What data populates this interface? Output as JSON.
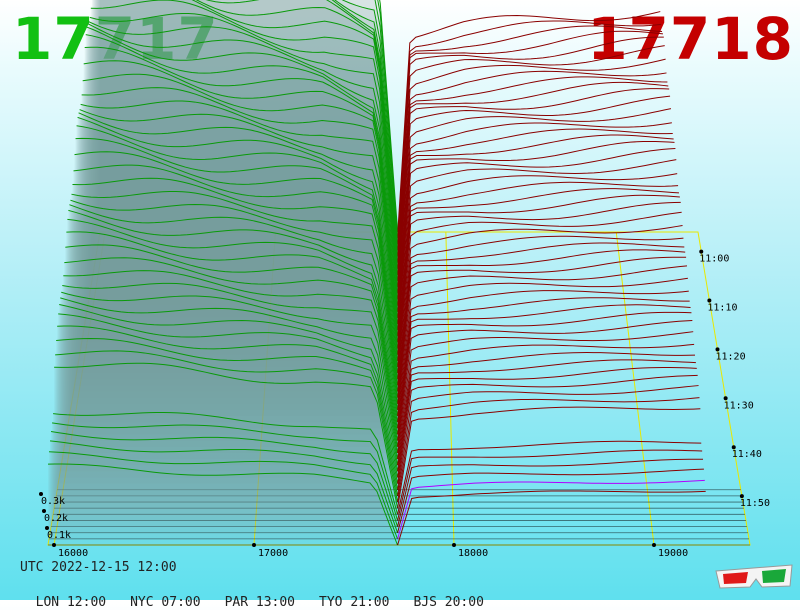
{
  "header": {
    "bid_price": "17717",
    "ask_price": "17718",
    "bid_color": "#12c012",
    "ask_color": "#c40000"
  },
  "footer": {
    "utc": "UTC 2022-12-15 12:00",
    "timezones": [
      {
        "label": "LON 12:00"
      },
      {
        "label": "NYC 07:00"
      },
      {
        "label": "PAR 13:00"
      },
      {
        "label": "TYO 21:00"
      },
      {
        "label": "BJS 20:00"
      }
    ]
  },
  "icons": {
    "anaglyph": "3d-glasses-icon"
  },
  "chart_data": {
    "type": "area",
    "title": "",
    "mid_price": 17717.5,
    "x_range": [
      15970,
      19480
    ],
    "x_ticks": [
      "16000",
      "17000",
      "18000",
      "19000"
    ],
    "x_tick_values": [
      16000,
      17000,
      18000,
      19000
    ],
    "depth_ticks": [
      "0.1k",
      "0.2k",
      "0.3k"
    ],
    "depth_tick_values": [
      100,
      200,
      300
    ],
    "time_ticks": [
      "11:00",
      "11:10",
      "11:20",
      "11:30",
      "11:40",
      "11:50"
    ],
    "time_range": [
      "10:56",
      "12:00"
    ],
    "series": [
      {
        "name": "",
        "side": "bid",
        "color": "#0a9a0a",
        "depth_curve": [
          [
            15970,
            530
          ],
          [
            16300,
            512
          ],
          [
            16700,
            490
          ],
          [
            17000,
            475
          ],
          [
            17300,
            460
          ],
          [
            17600,
            420
          ],
          [
            17717,
            0
          ]
        ]
      },
      {
        "name": "",
        "side": "ask",
        "color": "#8a0000",
        "depth_curve": [
          [
            17718,
            0
          ],
          [
            17790,
            330
          ],
          [
            18100,
            345
          ],
          [
            18600,
            355
          ],
          [
            19000,
            365
          ],
          [
            19260,
            370
          ]
        ]
      }
    ],
    "ask_final_color": "#b000ff",
    "grid_color": "#e8e800"
  }
}
